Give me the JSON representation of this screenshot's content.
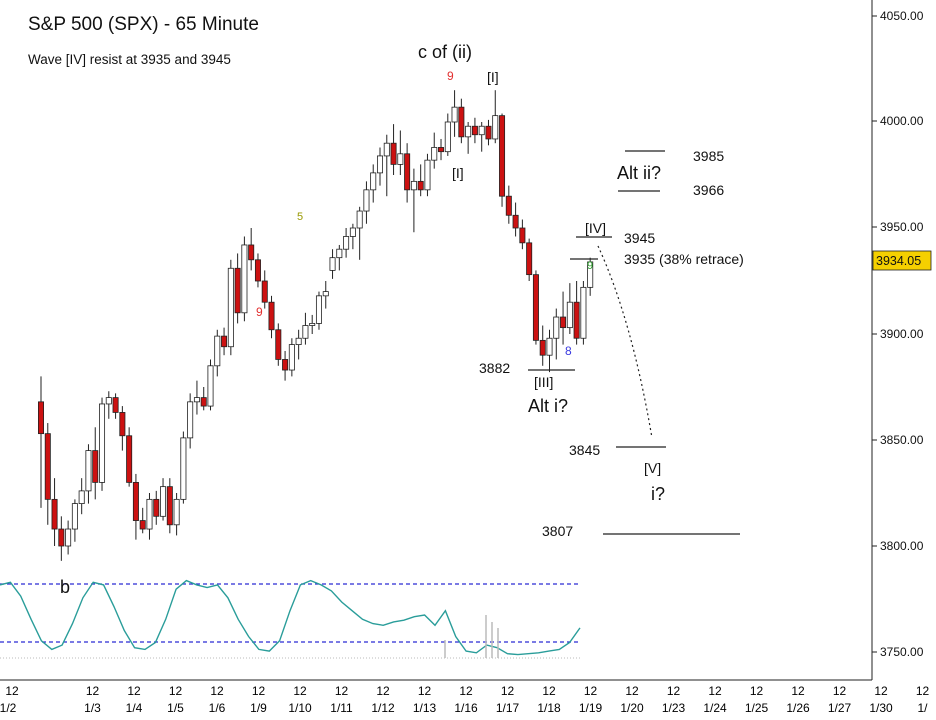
{
  "chart_data": {
    "type": "candlestick",
    "title": "S&P 500 (SPX) - 65 Minute",
    "subtitle": "Wave [IV] resist at 3935 and 3945",
    "price_axis": {
      "ylim": [
        3735,
        4060
      ],
      "ticks": [
        "4050.00",
        "4000.00",
        "3950.00",
        "3900.00",
        "3850.00",
        "3800.00",
        "3750.00"
      ],
      "tick_values": [
        4050,
        4000,
        3950,
        3900,
        3850,
        3800,
        3750
      ],
      "last_price": "3934.05"
    },
    "time_axis": {
      "hour_labels": [
        "12",
        "12",
        "12",
        "12",
        "12",
        "12",
        "12",
        "12",
        "12",
        "12",
        "12",
        "12",
        "12",
        "12",
        "12",
        "12",
        "12",
        "12",
        "12",
        "12",
        "12",
        "12"
      ],
      "date_labels": [
        "1/2",
        "1/3",
        "1/4",
        "1/5",
        "1/6",
        "1/9",
        "1/10",
        "1/11",
        "1/12",
        "1/13",
        "1/16",
        "1/17",
        "1/18",
        "1/19",
        "1/20",
        "1/23",
        "1/24",
        "1/25",
        "1/26",
        "1/27",
        "1/30",
        "1/"
      ]
    },
    "candles": [
      {
        "o": 3868,
        "h": 3880,
        "l": 3818,
        "c": 3853
      },
      {
        "o": 3853,
        "h": 3858,
        "l": 3810,
        "c": 3822
      },
      {
        "o": 3822,
        "h": 3832,
        "l": 3800,
        "c": 3808
      },
      {
        "o": 3808,
        "h": 3814,
        "l": 3793,
        "c": 3800
      },
      {
        "o": 3800,
        "h": 3812,
        "l": 3796,
        "c": 3808
      },
      {
        "o": 3808,
        "h": 3822,
        "l": 3802,
        "c": 3820
      },
      {
        "o": 3820,
        "h": 3832,
        "l": 3815,
        "c": 3826
      },
      {
        "o": 3826,
        "h": 3848,
        "l": 3820,
        "c": 3845
      },
      {
        "o": 3845,
        "h": 3856,
        "l": 3822,
        "c": 3830
      },
      {
        "o": 3830,
        "h": 3870,
        "l": 3826,
        "c": 3867
      },
      {
        "o": 3867,
        "h": 3873,
        "l": 3860,
        "c": 3870
      },
      {
        "o": 3870,
        "h": 3872,
        "l": 3860,
        "c": 3863
      },
      {
        "o": 3863,
        "h": 3866,
        "l": 3845,
        "c": 3852
      },
      {
        "o": 3852,
        "h": 3856,
        "l": 3828,
        "c": 3830
      },
      {
        "o": 3830,
        "h": 3834,
        "l": 3803,
        "c": 3812
      },
      {
        "o": 3812,
        "h": 3818,
        "l": 3806,
        "c": 3808
      },
      {
        "o": 3808,
        "h": 3825,
        "l": 3803,
        "c": 3822
      },
      {
        "o": 3822,
        "h": 3826,
        "l": 3810,
        "c": 3814
      },
      {
        "o": 3814,
        "h": 3832,
        "l": 3812,
        "c": 3828
      },
      {
        "o": 3828,
        "h": 3832,
        "l": 3806,
        "c": 3810
      },
      {
        "o": 3810,
        "h": 3825,
        "l": 3805,
        "c": 3822
      },
      {
        "o": 3822,
        "h": 3854,
        "l": 3820,
        "c": 3851
      },
      {
        "o": 3851,
        "h": 3872,
        "l": 3846,
        "c": 3868
      },
      {
        "o": 3868,
        "h": 3878,
        "l": 3862,
        "c": 3870
      },
      {
        "o": 3870,
        "h": 3875,
        "l": 3864,
        "c": 3866
      },
      {
        "o": 3866,
        "h": 3888,
        "l": 3864,
        "c": 3885
      },
      {
        "o": 3885,
        "h": 3902,
        "l": 3880,
        "c": 3899
      },
      {
        "o": 3899,
        "h": 3903,
        "l": 3890,
        "c": 3894
      },
      {
        "o": 3894,
        "h": 3935,
        "l": 3890,
        "c": 3931
      },
      {
        "o": 3931,
        "h": 3938,
        "l": 3905,
        "c": 3910
      },
      {
        "o": 3910,
        "h": 3946,
        "l": 3906,
        "c": 3942
      },
      {
        "o": 3942,
        "h": 3950,
        "l": 3930,
        "c": 3935
      },
      {
        "o": 3935,
        "h": 3938,
        "l": 3922,
        "c": 3925
      },
      {
        "o": 3925,
        "h": 3930,
        "l": 3912,
        "c": 3915
      },
      {
        "o": 3915,
        "h": 3918,
        "l": 3898,
        "c": 3902
      },
      {
        "o": 3902,
        "h": 3905,
        "l": 3885,
        "c": 3888
      },
      {
        "o": 3888,
        "h": 3892,
        "l": 3878,
        "c": 3883
      },
      {
        "o": 3883,
        "h": 3898,
        "l": 3880,
        "c": 3895
      },
      {
        "o": 3895,
        "h": 3902,
        "l": 3888,
        "c": 3898
      },
      {
        "o": 3898,
        "h": 3910,
        "l": 3895,
        "c": 3904
      },
      {
        "o": 3904,
        "h": 3909,
        "l": 3900,
        "c": 3905
      },
      {
        "o": 3905,
        "h": 3920,
        "l": 3902,
        "c": 3918
      },
      {
        "o": 3918,
        "h": 3925,
        "l": 3912,
        "c": 3920
      },
      {
        "o": 3930,
        "h": 3940,
        "l": 3926,
        "c": 3936
      },
      {
        "o": 3936,
        "h": 3942,
        "l": 3930,
        "c": 3940
      },
      {
        "o": 3940,
        "h": 3950,
        "l": 3936,
        "c": 3946
      },
      {
        "o": 3946,
        "h": 3952,
        "l": 3940,
        "c": 3950
      },
      {
        "o": 3950,
        "h": 3960,
        "l": 3935,
        "c": 3958
      },
      {
        "o": 3958,
        "h": 3972,
        "l": 3952,
        "c": 3968
      },
      {
        "o": 3968,
        "h": 3980,
        "l": 3962,
        "c": 3976
      },
      {
        "o": 3976,
        "h": 3988,
        "l": 3970,
        "c": 3984
      },
      {
        "o": 3984,
        "h": 3994,
        "l": 3965,
        "c": 3990
      },
      {
        "o": 3990,
        "h": 3999,
        "l": 3975,
        "c": 3980
      },
      {
        "o": 3980,
        "h": 3996,
        "l": 3975,
        "c": 3985
      },
      {
        "o": 3985,
        "h": 3990,
        "l": 3962,
        "c": 3968
      },
      {
        "o": 3968,
        "h": 3978,
        "l": 3948,
        "c": 3972
      },
      {
        "o": 3972,
        "h": 3980,
        "l": 3965,
        "c": 3968
      },
      {
        "o": 3968,
        "h": 3985,
        "l": 3965,
        "c": 3982
      },
      {
        "o": 3982,
        "h": 3995,
        "l": 3978,
        "c": 3988
      },
      {
        "o": 3988,
        "h": 3992,
        "l": 3982,
        "c": 3986
      },
      {
        "o": 3986,
        "h": 4004,
        "l": 3984,
        "c": 4000
      },
      {
        "o": 4000,
        "h": 4015,
        "l": 3993,
        "c": 4007
      },
      {
        "o": 4007,
        "h": 4011,
        "l": 3990,
        "c": 3993
      },
      {
        "o": 3993,
        "h": 4000,
        "l": 3985,
        "c": 3998
      },
      {
        "o": 3998,
        "h": 4002,
        "l": 3990,
        "c": 3994
      },
      {
        "o": 3994,
        "h": 4000,
        "l": 3986,
        "c": 3998
      },
      {
        "o": 3998,
        "h": 4001,
        "l": 3989,
        "c": 3992
      },
      {
        "o": 3992,
        "h": 4015,
        "l": 3990,
        "c": 4003
      },
      {
        "o": 4003,
        "h": 4004,
        "l": 3960,
        "c": 3965
      },
      {
        "o": 3965,
        "h": 3970,
        "l": 3952,
        "c": 3956
      },
      {
        "o": 3956,
        "h": 3962,
        "l": 3946,
        "c": 3950
      },
      {
        "o": 3950,
        "h": 3954,
        "l": 3940,
        "c": 3943
      },
      {
        "o": 3943,
        "h": 3945,
        "l": 3925,
        "c": 3928
      },
      {
        "o": 3928,
        "h": 3930,
        "l": 3895,
        "c": 3897
      },
      {
        "o": 3897,
        "h": 3904,
        "l": 3885,
        "c": 3890
      },
      {
        "o": 3890,
        "h": 3902,
        "l": 3882,
        "c": 3898
      },
      {
        "o": 3898,
        "h": 3912,
        "l": 3888,
        "c": 3908
      },
      {
        "o": 3908,
        "h": 3920,
        "l": 3895,
        "c": 3903
      },
      {
        "o": 3903,
        "h": 3924,
        "l": 3900,
        "c": 3915
      },
      {
        "o": 3915,
        "h": 3925,
        "l": 3895,
        "c": 3898
      },
      {
        "o": 3898,
        "h": 3925,
        "l": 3895,
        "c": 3922
      },
      {
        "o": 3922,
        "h": 3936,
        "l": 3918,
        "c": 3934
      }
    ],
    "annotations": {
      "wave_labels": [
        "c of (ii)",
        "[I]",
        "[I]",
        "[III]",
        "[IV]",
        "[V]",
        "Alt i?",
        "Alt ii?",
        "i?",
        "b"
      ],
      "count_labels": [
        "9",
        "9",
        "5",
        "8",
        "9"
      ],
      "level_labels": [
        "3985",
        "3966",
        "3945",
        "3935 (38% retrace)",
        "3882",
        "3845",
        "3807"
      ],
      "levels": [
        3985,
        3966,
        3945,
        3935,
        3882,
        3845,
        3807
      ]
    },
    "oscillator": {
      "overbought_line": "dashed-blue",
      "oversold_line": "dashed-blue",
      "values": [
        0.85,
        0.88,
        0.72,
        0.45,
        0.2,
        0.1,
        0.15,
        0.4,
        0.7,
        0.88,
        0.85,
        0.6,
        0.32,
        0.12,
        0.1,
        0.18,
        0.45,
        0.8,
        0.9,
        0.85,
        0.82,
        0.85,
        0.7,
        0.45,
        0.25,
        0.1,
        0.08,
        0.2,
        0.55,
        0.85,
        0.9,
        0.85,
        0.78,
        0.65,
        0.55,
        0.45,
        0.4,
        0.38,
        0.42,
        0.44,
        0.48,
        0.5,
        0.38,
        0.55,
        0.25,
        0.08,
        0.06,
        0.15,
        0.12,
        0.05,
        0.04,
        0.05,
        0.06,
        0.08,
        0.1,
        0.18,
        0.35
      ]
    }
  },
  "colors": {
    "up_candle": "#ffffff",
    "down_candle": "#cc1111",
    "oscillator_line": "#2a9d9a",
    "dashed_line": "#2b2bd4",
    "last_price_bg": "#f5d000",
    "count_red": "#e23030",
    "count_olive": "#999900",
    "count_blue": "#3a3ae0",
    "count_green": "#2ca02c"
  }
}
